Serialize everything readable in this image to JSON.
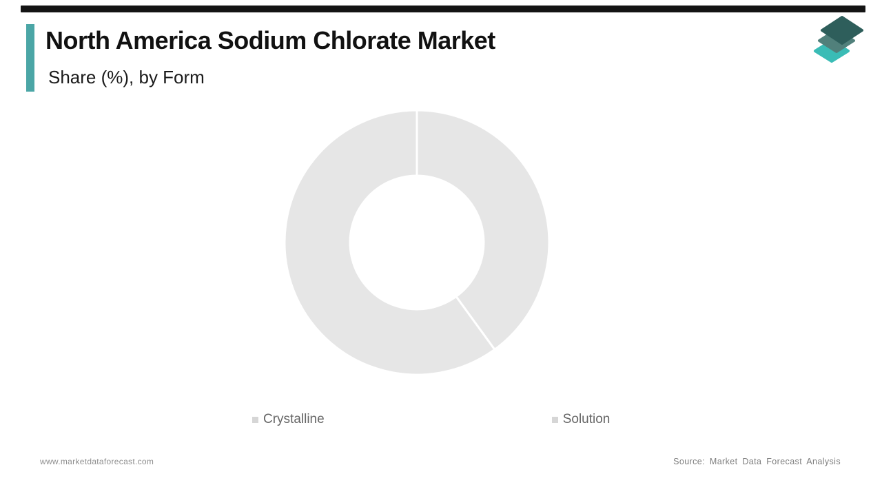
{
  "header": {
    "title": "North America Sodium Chlorate Market",
    "subtitle": "Share (%), by Form"
  },
  "brand": {
    "accent_color": "#4BA6A6",
    "top_bar_color": "#141414",
    "logo_colors": {
      "top": "#2E5E5B",
      "middle": "#51807B",
      "bottom": "#3ABCB6"
    }
  },
  "chart_data": {
    "type": "donut",
    "title": "North America Sodium Chlorate Market",
    "subtitle": "Share (%), by Form",
    "categories": [
      "Crystalline",
      "Solution"
    ],
    "values": [
      40,
      60
    ],
    "unit": "%",
    "slice_colors": [
      "#E6E6E6",
      "#E6E6E6"
    ],
    "divider_color": "#FFFFFF",
    "inner_radius_ratio": 0.505,
    "start_angle_deg": 0,
    "direction": "clockwise",
    "legend_position": "bottom",
    "legend_marker_color": "#D6D6D6",
    "data_labels": "none"
  },
  "footer": {
    "website": "www.marketdataforecast.com",
    "source": "Source: Market Data Forecast Analysis"
  }
}
